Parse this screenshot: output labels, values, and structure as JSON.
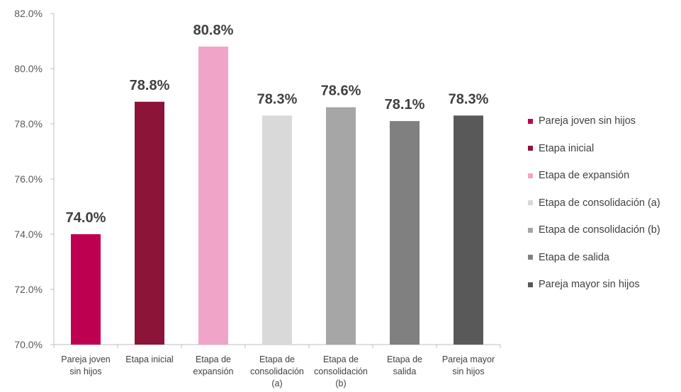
{
  "chart_data": {
    "type": "bar",
    "categories": [
      "Pareja joven sin hijos",
      "Etapa inicial",
      "Etapa de expansión",
      "Etapa de consolidación (a)",
      "Etapa de consolidación (b)",
      "Etapa de salida",
      "Pareja mayor sin hijos"
    ],
    "category_label_lines": [
      [
        "Pareja joven",
        "sin hijos"
      ],
      [
        "Etapa inicial"
      ],
      [
        "Etapa de",
        "expansión"
      ],
      [
        "Etapa de",
        "consolidación",
        "(a)"
      ],
      [
        "Etapa de",
        "consolidación",
        "(b)"
      ],
      [
        "Etapa de",
        "salida"
      ],
      [
        "Pareja mayor",
        "sin hijos"
      ]
    ],
    "values": [
      74.0,
      78.8,
      80.8,
      78.3,
      78.6,
      78.1,
      78.3
    ],
    "data_labels": [
      "74.0%",
      "78.8%",
      "80.8%",
      "78.3%",
      "78.6%",
      "78.1%",
      "78.3%"
    ],
    "colors": [
      "#BE0050",
      "#8C1438",
      "#F0A5C8",
      "#D9D9D9",
      "#A6A6A6",
      "#808080",
      "#595959"
    ],
    "ylim": [
      70,
      82
    ],
    "yticks": [
      70,
      72,
      74,
      76,
      78,
      80,
      82
    ],
    "ytick_labels": [
      "70.0%",
      "72.0%",
      "74.0%",
      "76.0%",
      "78.0%",
      "80.0%",
      "82.0%"
    ],
    "title": "",
    "xlabel": "",
    "ylabel": "",
    "grid": false,
    "legend_position": "right",
    "axis_color": "#BFBFBF"
  }
}
